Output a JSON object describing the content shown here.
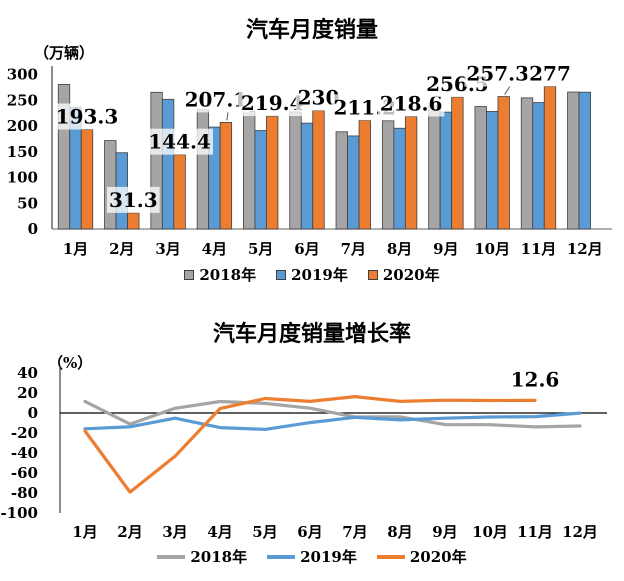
{
  "chart_data": [
    {
      "type": "bar",
      "title": "汽车月度销量",
      "unit_label": "（万辆）",
      "categories": [
        "1月",
        "2月",
        "3月",
        "4月",
        "5月",
        "6月",
        "7月",
        "8月",
        "9月",
        "10月",
        "11月",
        "12月"
      ],
      "yticks": [
        300,
        250,
        200,
        150,
        100,
        50,
        0
      ],
      "ylim": [
        0,
        300
      ],
      "grid": false,
      "legend_position": "bottom",
      "series": [
        {
          "name": "2018年",
          "color": "#A5A5A5",
          "values": [
            280.9,
            171.8,
            265.6,
            231.9,
            228.8,
            227.4,
            188.9,
            210.3,
            239.4,
            238.0,
            254.8,
            266.1
          ]
        },
        {
          "name": "2019年",
          "color": "#5B9BD5",
          "values": [
            236.7,
            148.2,
            252.0,
            198.0,
            191.3,
            205.7,
            180.8,
            195.8,
            227.1,
            228.4,
            245.7,
            265.8
          ]
        },
        {
          "name": "2020年",
          "color": "#ED7D31",
          "show_labels": true,
          "values": [
            193.3,
            31.3,
            144.4,
            207.1,
            219.4,
            230,
            211.2,
            218.6,
            256.5,
            257.3,
            277,
            null
          ]
        }
      ]
    },
    {
      "type": "line",
      "title": "汽车月度销量增长率",
      "unit_label": "（%）",
      "categories": [
        "1月",
        "2月",
        "3月",
        "4月",
        "5月",
        "6月",
        "7月",
        "8月",
        "9月",
        "10月",
        "11月",
        "12月"
      ],
      "yticks": [
        40,
        20,
        0,
        -20,
        -40,
        -60,
        -80,
        -100
      ],
      "ylim": [
        -100,
        40
      ],
      "grid": false,
      "legend_position": "bottom",
      "series": [
        {
          "name": "2018年",
          "color": "#A5A5A5",
          "values": [
            11.6,
            -11.1,
            4.7,
            11.5,
            9.6,
            4.8,
            -4.0,
            -3.8,
            -11.6,
            -11.7,
            -13.9,
            -13.0
          ]
        },
        {
          "name": "2019年",
          "color": "#5B9BD5",
          "values": [
            -15.8,
            -13.8,
            -5.2,
            -14.6,
            -16.4,
            -9.6,
            -4.3,
            -6.9,
            -5.2,
            -4.0,
            -3.6,
            -0.1
          ]
        },
        {
          "name": "2020年",
          "color": "#ED7D31",
          "end_label": "12.6",
          "values": [
            -18.0,
            -79.1,
            -43.3,
            4.4,
            14.5,
            11.6,
            16.4,
            11.6,
            12.8,
            12.5,
            12.6,
            null
          ]
        }
      ]
    }
  ],
  "axis_colors": {
    "y_axis": "#404040",
    "x_axis": "#808080",
    "zero_line": "#000000"
  }
}
